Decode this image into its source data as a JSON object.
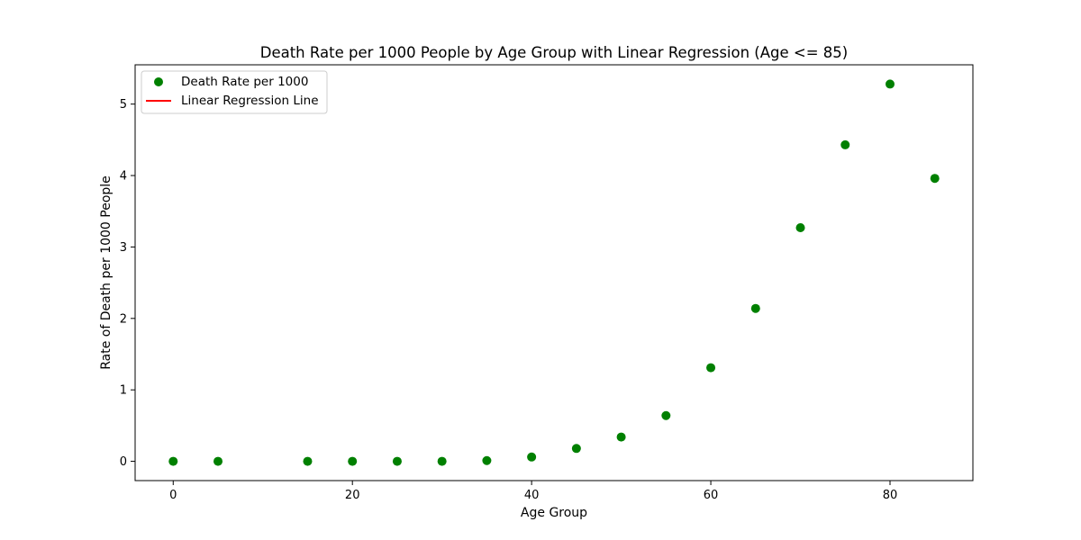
{
  "chart_data": {
    "type": "scatter",
    "title": "Death Rate per 1000 People by Age Group with Linear Regression (Age <= 85)",
    "xlabel": "Age Group",
    "ylabel": "Rate of Death per 1000 People",
    "xlim": [
      -4.25,
      89.25
    ],
    "ylim": [
      -0.27,
      5.55
    ],
    "xticks": [
      0,
      20,
      40,
      60,
      80
    ],
    "yticks": [
      0,
      1,
      2,
      3,
      4,
      5
    ],
    "grid": false,
    "legend_position": "upper-left",
    "series": [
      {
        "name": "Death Rate per 1000",
        "kind": "scatter",
        "color": "#008000",
        "x": [
          0,
          5,
          15,
          20,
          25,
          30,
          35,
          40,
          45,
          50,
          55,
          60,
          65,
          70,
          75,
          80,
          85
        ],
        "y": [
          0.0,
          0.0,
          0.0,
          0.0,
          0.0,
          0.0,
          0.01,
          0.06,
          0.18,
          0.34,
          0.64,
          1.31,
          2.14,
          3.27,
          4.43,
          5.28,
          3.96
        ]
      },
      {
        "name": "Linear Regression Line",
        "kind": "line",
        "color": "#ff0000",
        "x": [],
        "y": []
      }
    ]
  }
}
